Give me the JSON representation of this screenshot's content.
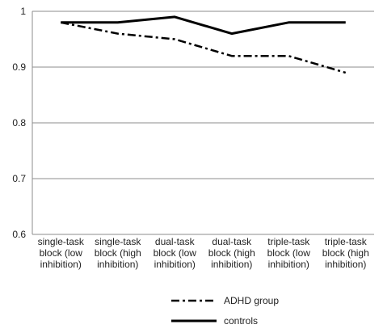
{
  "chart_data": {
    "type": "line",
    "title": "",
    "xlabel": "",
    "ylabel": "",
    "ylim": [
      0.6,
      1
    ],
    "yticks": [
      "0.6",
      "0.7",
      "0.8",
      "0.9",
      "1"
    ],
    "grid": true,
    "legend_position": "bottom",
    "categories": [
      [
        "single-task",
        "block (low",
        "inhibition)"
      ],
      [
        "single-task",
        "block  (high",
        "inhibition)"
      ],
      [
        "dual-task",
        "block (low",
        "inhibition)"
      ],
      [
        "dual-task",
        "block (high",
        "inhibition)"
      ],
      [
        "triple-task",
        "block (low",
        "inhibition)"
      ],
      [
        "triple-task",
        "block (high",
        "inhibition)"
      ]
    ],
    "series": [
      {
        "name": "ADHD group",
        "values": [
          0.98,
          0.96,
          0.95,
          0.92,
          0.92,
          0.89
        ],
        "style": "dash-dot",
        "color": "#000000"
      },
      {
        "name": "controls",
        "values": [
          0.98,
          0.98,
          0.99,
          0.96,
          0.98,
          0.98
        ],
        "style": "solid",
        "color": "#000000"
      }
    ]
  }
}
